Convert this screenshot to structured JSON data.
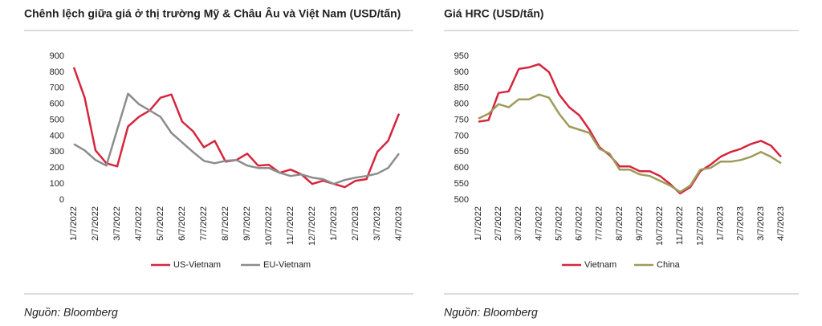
{
  "chart_data": [
    {
      "type": "line",
      "title": "Chênh lệch giữa giá ở thị trường Mỹ & Châu Âu và Việt Nam (USD/tấn)",
      "categories": [
        "1/7/2022",
        null,
        "2/7/2022",
        null,
        "3/7/2022",
        null,
        "4/7/2022",
        null,
        "5/7/2022",
        null,
        "6/7/2022",
        null,
        "7/7/2022",
        null,
        "8/7/2022",
        null,
        "9/7/2022",
        null,
        "10/7/2022",
        null,
        "11/7/2022",
        null,
        "12/7/2022",
        null,
        "1/7/2023",
        null,
        "2/7/2023",
        null,
        "3/7/2023",
        null,
        "4/7/2023"
      ],
      "series": [
        {
          "name": "US-Vietnam",
          "color": "#d5263e",
          "values": [
            830,
            640,
            310,
            230,
            210,
            460,
            520,
            560,
            640,
            660,
            490,
            430,
            330,
            370,
            240,
            250,
            290,
            215,
            220,
            170,
            190,
            160,
            100,
            120,
            100,
            80,
            120,
            130,
            300,
            370,
            540
          ]
        },
        {
          "name": "EU-Vietnam",
          "color": "#8c8c8c",
          "values": [
            350,
            310,
            250,
            215,
            440,
            665,
            600,
            560,
            520,
            420,
            360,
            300,
            245,
            230,
            245,
            250,
            215,
            200,
            200,
            170,
            150,
            160,
            140,
            130,
            100,
            125,
            140,
            150,
            165,
            200,
            290
          ]
        }
      ],
      "ylim": [
        0,
        900
      ],
      "yticks": [
        0,
        100,
        200,
        300,
        400,
        500,
        600,
        700,
        800,
        900
      ],
      "legend": "bottom",
      "source": "Nguồn: Bloomberg"
    },
    {
      "type": "line",
      "title": "Giá HRC (USD/tấn)",
      "categories": [
        "1/7/2022",
        null,
        "2/7/2022",
        null,
        "3/7/2022",
        null,
        "4/7/2022",
        null,
        "5/7/2022",
        null,
        "6/7/2022",
        null,
        "7/7/2022",
        null,
        "8/7/2022",
        null,
        "9/7/2022",
        null,
        "10/7/2022",
        null,
        "11/7/2022",
        null,
        "12/7/2022",
        null,
        "1/7/2023",
        null,
        "2/7/2023",
        null,
        "3/7/2023",
        null,
        "4/7/2023"
      ],
      "series": [
        {
          "name": "Vietnam",
          "color": "#d5263e",
          "values": [
            745,
            750,
            835,
            840,
            910,
            915,
            925,
            900,
            830,
            790,
            765,
            720,
            665,
            640,
            605,
            605,
            590,
            590,
            575,
            550,
            520,
            540,
            590,
            610,
            635,
            650,
            660,
            675,
            685,
            670,
            635
          ]
        },
        {
          "name": "China",
          "color": "#9d9a5b",
          "values": [
            755,
            770,
            800,
            790,
            815,
            815,
            830,
            820,
            770,
            730,
            720,
            710,
            660,
            645,
            595,
            595,
            580,
            575,
            560,
            545,
            525,
            545,
            595,
            600,
            620,
            620,
            625,
            635,
            650,
            635,
            615
          ]
        }
      ],
      "ylim": [
        500,
        950
      ],
      "yticks": [
        500,
        550,
        600,
        650,
        700,
        750,
        800,
        850,
        900,
        950
      ],
      "legend": "bottom",
      "source": "Nguồn: Bloomberg"
    }
  ]
}
